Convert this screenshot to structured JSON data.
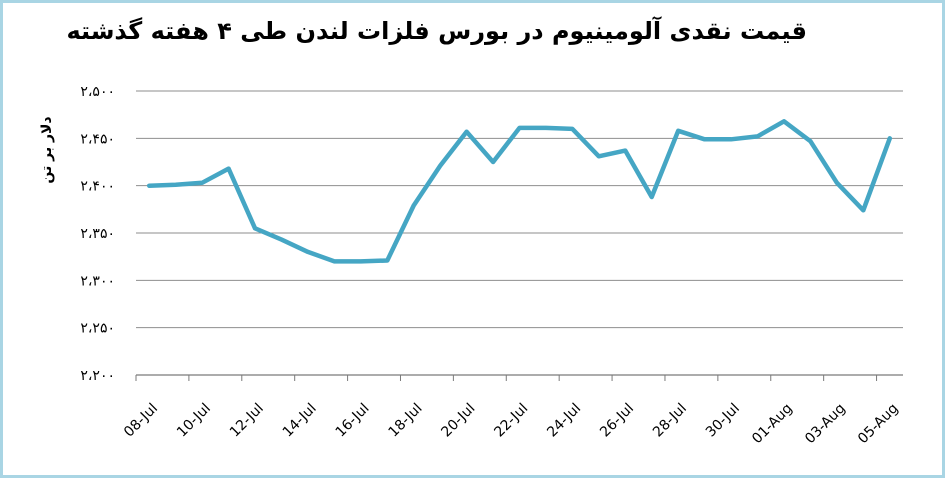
{
  "colors": {
    "line": "#45a6c4",
    "border": "#a9d5e4",
    "grid": "#8e8e8e",
    "axis": "#7a7a7a",
    "text": "#000000"
  },
  "chart_data": {
    "type": "line",
    "title": "قیمت نقدی آلومینیوم در بورس فلزات لندن طی ۴ هفته گذشته",
    "xlabel": "",
    "ylabel": "دلار بر تن",
    "ylim": [
      2200,
      2500
    ],
    "y_tick_step": 50,
    "grid": true,
    "legend": false,
    "x": [
      "08-Jul",
      "09-Jul",
      "10-Jul",
      "11-Jul",
      "12-Jul",
      "13-Jul",
      "14-Jul",
      "15-Jul",
      "16-Jul",
      "17-Jul",
      "18-Jul",
      "19-Jul",
      "20-Jul",
      "21-Jul",
      "22-Jul",
      "23-Jul",
      "24-Jul",
      "25-Jul",
      "26-Jul",
      "27-Jul",
      "28-Jul",
      "29-Jul",
      "30-Jul",
      "31-Jul",
      "01-Aug",
      "02-Aug",
      "03-Aug",
      "04-Aug",
      "05-Aug"
    ],
    "values": [
      2400,
      2401,
      2403,
      2418,
      2355,
      2343,
      2330,
      2320,
      2320,
      2321,
      2379,
      2421,
      2457,
      2425,
      2461,
      2461,
      2460,
      2431,
      2437,
      2388,
      2458,
      2449,
      2449,
      2452,
      2468,
      2447,
      2403,
      2374,
      2450
    ],
    "x_tick_every": 2,
    "x_tick_labels": [
      "08-Jul",
      "10-Jul",
      "12-Jul",
      "14-Jul",
      "16-Jul",
      "18-Jul",
      "20-Jul",
      "22-Jul",
      "24-Jul",
      "26-Jul",
      "28-Jul",
      "30-Jul",
      "01-Aug",
      "03-Aug",
      "05-Aug"
    ],
    "y_tick_values": [
      2500,
      2450,
      2400,
      2350,
      2300,
      2250,
      2200
    ],
    "y_tick_labels": [
      "۲،۵۰۰",
      "۲،۴۵۰",
      "۲،۴۰۰",
      "۲،۳۵۰",
      "۲،۳۰۰",
      "۲،۲۵۰",
      "۲،۲۰۰"
    ]
  }
}
